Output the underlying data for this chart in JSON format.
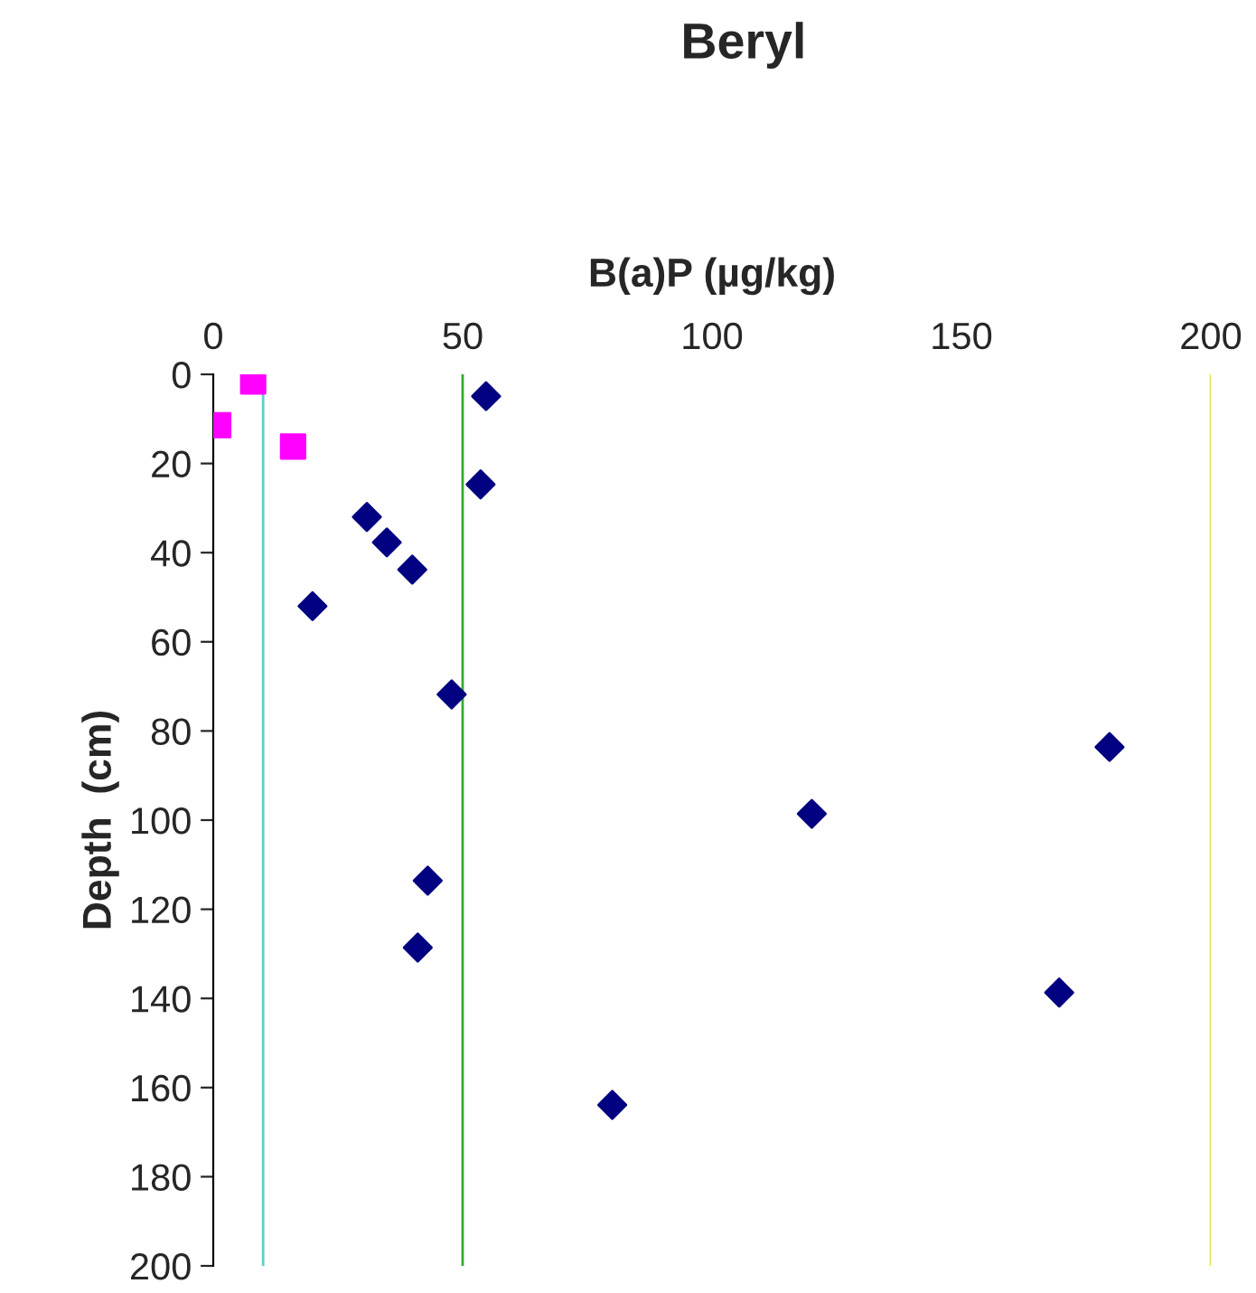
{
  "chart_data": {
    "type": "scatter",
    "title": "Beryl",
    "xlabel": "B(a)P (µg/kg)",
    "ylabel": "Depth  (cm)",
    "xlim": [
      0,
      200
    ],
    "xticks": [
      0,
      50,
      100,
      150,
      200
    ],
    "ylim": [
      200,
      0
    ],
    "yticks": [
      0,
      20,
      40,
      60,
      80,
      100,
      120,
      140,
      160,
      180,
      200
    ],
    "grid": false,
    "legend": false,
    "series": [
      {
        "color": "#ff00ff",
        "marker": "square",
        "x": [
          8,
          1,
          16
        ],
        "values": [
          1.6,
          11.4,
          16.2
        ]
      },
      {
        "color": "#000080",
        "marker": "diamond",
        "x": [
          54.7,
          53.6,
          30.8,
          34.8,
          39.9,
          19.9,
          47.8,
          179.7,
          120,
          43,
          41,
          169.6,
          80
        ],
        "values": [
          4.9,
          24.7,
          32,
          37.7,
          43.8,
          52,
          71.8,
          83.6,
          98.6,
          113.6,
          128.6,
          138.7,
          163.9
        ]
      }
    ],
    "ref_lines": [
      {
        "axis": "x",
        "value": 10,
        "color": "#66cccc"
      },
      {
        "axis": "x",
        "value": 50,
        "color": "#33aa33"
      },
      {
        "axis": "x",
        "value": 200,
        "color": "#e6e64d"
      }
    ]
  }
}
